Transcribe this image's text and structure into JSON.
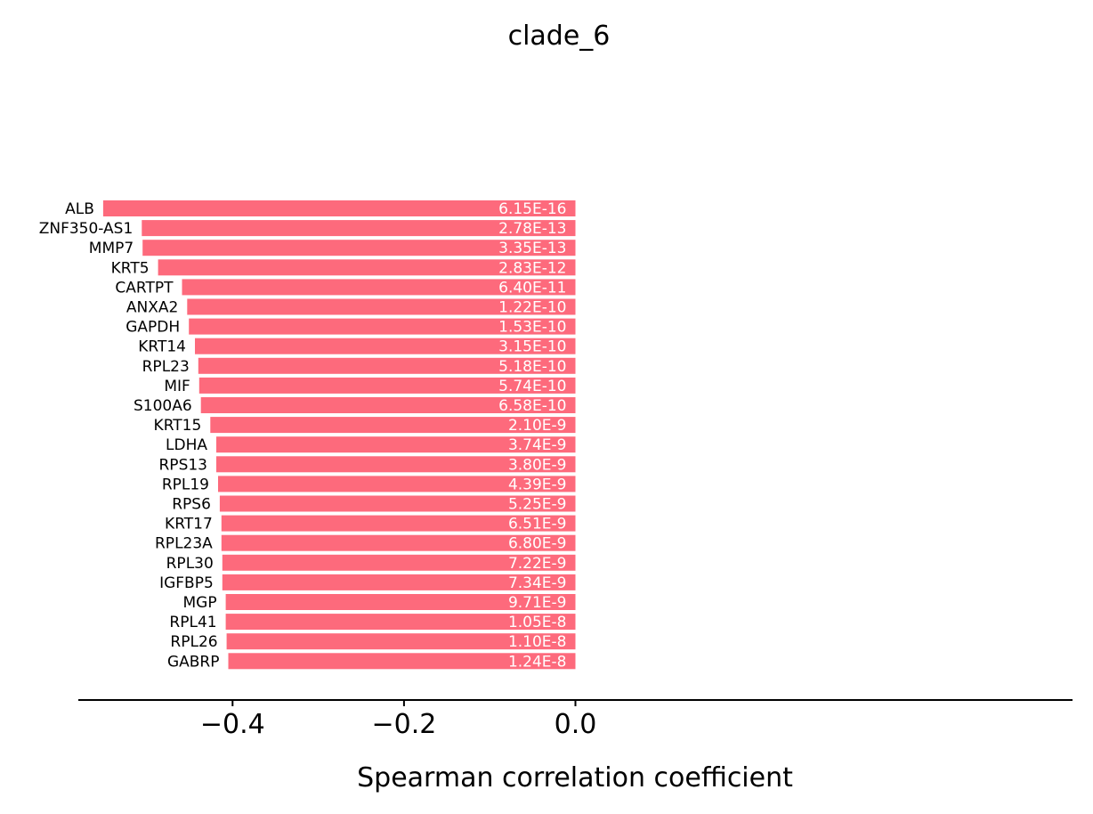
{
  "chart_data": {
    "type": "bar",
    "orientation": "horizontal",
    "title": "clade_6",
    "xlabel": "Spearman correlation coefficient",
    "ylabel": "",
    "xlim": [
      -0.58,
      0.58
    ],
    "xticks": [
      -0.4,
      -0.2,
      0.0
    ],
    "xtick_labels": [
      "−0.4",
      "−0.2",
      "0.0"
    ],
    "grid": false,
    "bar_color": "#fd6a7c",
    "bars": [
      {
        "gene": "ALB",
        "value": -0.551,
        "pvalue": "6.15E-16"
      },
      {
        "gene": "ZNF350-AS1",
        "value": -0.506,
        "pvalue": "2.78E-13"
      },
      {
        "gene": "MMP7",
        "value": -0.505,
        "pvalue": "3.35E-13"
      },
      {
        "gene": "KRT5",
        "value": -0.487,
        "pvalue": "2.83E-12"
      },
      {
        "gene": "CARTPT",
        "value": -0.459,
        "pvalue": "6.40E-11"
      },
      {
        "gene": "ANXA2",
        "value": -0.453,
        "pvalue": "1.22E-10"
      },
      {
        "gene": "GAPDH",
        "value": -0.451,
        "pvalue": "1.53E-10"
      },
      {
        "gene": "KRT14",
        "value": -0.444,
        "pvalue": "3.15E-10"
      },
      {
        "gene": "RPL23",
        "value": -0.44,
        "pvalue": "5.18E-10"
      },
      {
        "gene": "MIF",
        "value": -0.439,
        "pvalue": "5.74E-10"
      },
      {
        "gene": "S100A6",
        "value": -0.437,
        "pvalue": "6.58E-10"
      },
      {
        "gene": "KRT15",
        "value": -0.426,
        "pvalue": "2.10E-9"
      },
      {
        "gene": "LDHA",
        "value": -0.419,
        "pvalue": "3.74E-9"
      },
      {
        "gene": "RPS13",
        "value": -0.419,
        "pvalue": "3.80E-9"
      },
      {
        "gene": "RPL19",
        "value": -0.417,
        "pvalue": "4.39E-9"
      },
      {
        "gene": "RPS6",
        "value": -0.415,
        "pvalue": "5.25E-9"
      },
      {
        "gene": "KRT17",
        "value": -0.413,
        "pvalue": "6.51E-9"
      },
      {
        "gene": "RPL23A",
        "value": -0.413,
        "pvalue": "6.80E-9"
      },
      {
        "gene": "RPL30",
        "value": -0.412,
        "pvalue": "7.22E-9"
      },
      {
        "gene": "IGFBP5",
        "value": -0.412,
        "pvalue": "7.34E-9"
      },
      {
        "gene": "MGP",
        "value": -0.408,
        "pvalue": "9.71E-9"
      },
      {
        "gene": "RPL41",
        "value": -0.408,
        "pvalue": "1.05E-8"
      },
      {
        "gene": "RPL26",
        "value": -0.407,
        "pvalue": "1.10E-8"
      },
      {
        "gene": "GABRP",
        "value": -0.405,
        "pvalue": "1.24E-8"
      }
    ]
  }
}
